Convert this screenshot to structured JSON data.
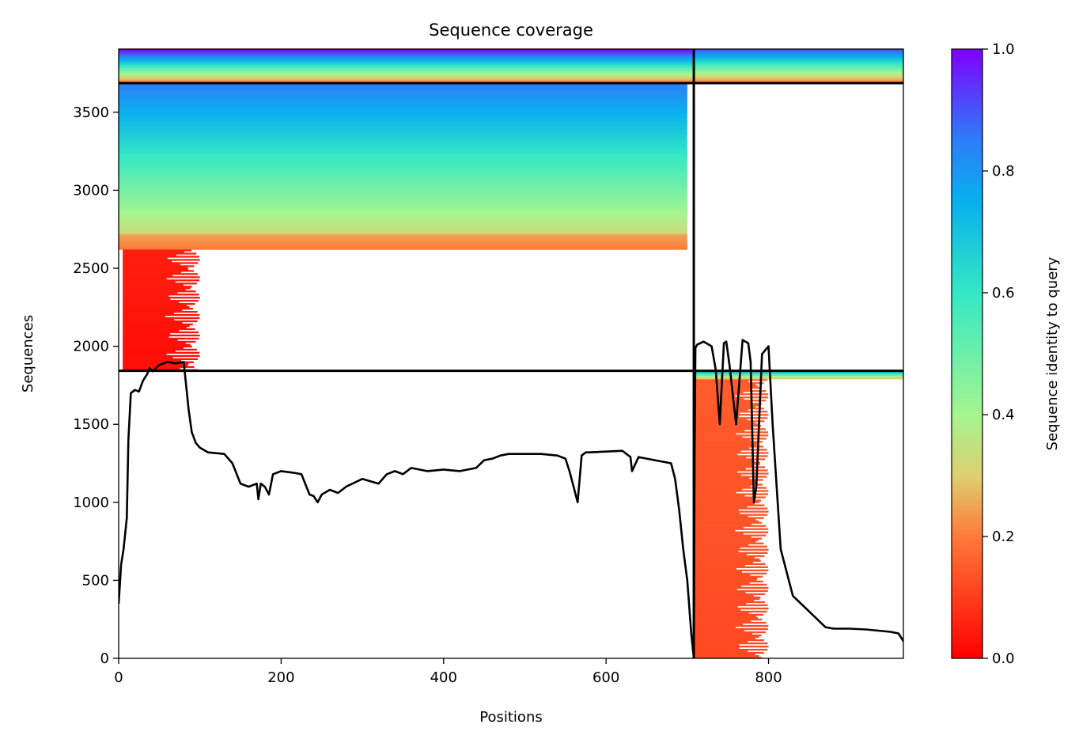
{
  "chart_data": {
    "type": "heatmap",
    "title": "Sequence coverage",
    "xlabel": "Positions",
    "ylabel": "Sequences",
    "xlim": [
      0,
      966
    ],
    "ylim": [
      0,
      3905
    ],
    "xticks": [
      0,
      200,
      400,
      600,
      800
    ],
    "yticks": [
      0,
      500,
      1000,
      1500,
      2000,
      2500,
      3000,
      3500
    ],
    "colorbar": {
      "label": "Sequence identity to query",
      "range": [
        0,
        1
      ],
      "ticks": [
        0.0,
        0.2,
        0.4,
        0.6,
        0.8,
        1.0
      ],
      "colormap": "rainbow_r"
    },
    "chain_boundaries": {
      "vertical_x": 708,
      "horizontal_y": [
        1843,
        3687
      ]
    },
    "coverage_blocks": [
      {
        "x": [
          0,
          708
        ],
        "y": [
          3687,
          3905
        ],
        "identity_top": 1.0,
        "identity_bottom": 0.2,
        "note": "paired top-left"
      },
      {
        "x": [
          708,
          966
        ],
        "y": [
          3687,
          3905
        ],
        "identity_top": 0.9,
        "identity_bottom": 0.2,
        "note": "paired top-right"
      },
      {
        "x": [
          0,
          700
        ],
        "y": [
          2720,
          3687
        ],
        "identity_top": 0.85,
        "identity_bottom": 0.33,
        "note": "chain A high identity"
      },
      {
        "x": [
          0,
          700
        ],
        "y": [
          2620,
          2720
        ],
        "identity_top": 0.25,
        "identity_bottom": 0.2,
        "note": "chain A orange band"
      },
      {
        "x": [
          5,
          100
        ],
        "y": [
          1843,
          2620
        ],
        "identity_top": 0.05,
        "identity_bottom": 0.02,
        "note": "chain A N-term low identity"
      },
      {
        "x": [
          708,
          800
        ],
        "y": [
          0,
          1790
        ],
        "identity_top": 0.15,
        "identity_bottom": 0.12,
        "note": "chain B low identity"
      },
      {
        "x": [
          708,
          966
        ],
        "y": [
          1790,
          1843
        ],
        "identity_top": 0.75,
        "identity_bottom": 0.3,
        "note": "chain B high identity"
      }
    ],
    "series": [
      {
        "x": [
          0,
          3,
          6,
          10,
          12,
          15,
          20,
          25,
          30,
          35,
          38,
          42,
          50,
          60,
          70,
          80,
          84,
          86,
          90,
          95,
          100,
          110,
          130,
          140,
          150,
          160,
          170,
          172,
          175,
          180,
          185,
          190,
          200,
          215,
          225,
          235,
          240,
          245,
          250,
          260,
          270,
          280,
          300,
          320,
          330,
          340,
          350,
          360,
          380,
          400,
          420,
          440,
          450,
          460,
          470,
          480,
          500,
          520,
          540,
          550,
          555,
          560,
          565,
          570,
          575,
          580,
          600,
          620,
          630,
          632,
          640,
          660,
          670,
          680,
          685,
          690,
          695,
          700,
          705,
          708,
          709,
          710,
          712,
          720,
          730,
          735,
          740,
          745,
          748,
          752,
          760,
          768,
          775,
          778,
          782,
          785,
          792,
          800,
          805,
          815,
          830,
          850,
          870,
          880,
          900,
          920,
          950,
          960,
          966
        ],
        "values": [
          350,
          600,
          700,
          900,
          1400,
          1700,
          1720,
          1710,
          1780,
          1820,
          1860,
          1840,
          1880,
          1900,
          1890,
          1900,
          1700,
          1600,
          1450,
          1380,
          1350,
          1320,
          1310,
          1250,
          1120,
          1100,
          1120,
          1020,
          1120,
          1100,
          1050,
          1180,
          1200,
          1190,
          1180,
          1050,
          1040,
          1000,
          1050,
          1080,
          1060,
          1100,
          1150,
          1120,
          1180,
          1200,
          1180,
          1220,
          1200,
          1210,
          1200,
          1220,
          1270,
          1280,
          1300,
          1310,
          1310,
          1310,
          1300,
          1280,
          1200,
          1100,
          1000,
          1300,
          1320,
          1320,
          1325,
          1330,
          1290,
          1200,
          1290,
          1270,
          1260,
          1250,
          1150,
          950,
          700,
          500,
          150,
          0,
          1300,
          1990,
          2010,
          2030,
          2000,
          1850,
          1500,
          2020,
          2030,
          1880,
          1500,
          2040,
          2020,
          1900,
          1000,
          1100,
          1950,
          2000,
          1500,
          700,
          400,
          300,
          200,
          190,
          190,
          185,
          170,
          160,
          110
        ]
      }
    ]
  }
}
